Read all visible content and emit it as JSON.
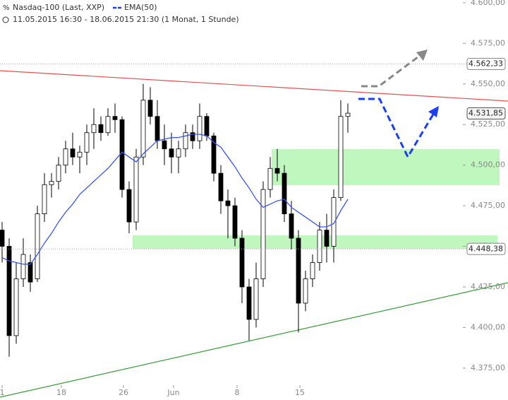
{
  "chart_data": {
    "type": "candlestick",
    "title": "Nasdaq-100 (Last, XXP)",
    "subtitle": "11.05.2015 16:30 - 18.06.2015 21:30 (1 Monat, 1 Stunde)",
    "up_color": "#ffffff",
    "down_color": "#000000",
    "open": [
      4460,
      4450,
      4395,
      4430,
      4440,
      4430,
      4470,
      4488,
      4490,
      4500,
      4510,
      4505,
      4508,
      4520,
      4525,
      4520,
      4530,
      4528,
      4485,
      4465,
      4505,
      4540,
      4530,
      4515,
      4510,
      4505,
      4510,
      4520,
      4515,
      4530,
      4518,
      4495,
      4478,
      4475,
      4455,
      4425,
      4405,
      4430,
      4485,
      4498,
      4495,
      4470,
      4455,
      4415,
      4430,
      4440,
      4460,
      4450,
      4480,
      4530
    ],
    "high": [
      4465,
      4455,
      4440,
      4455,
      4445,
      4475,
      4495,
      4495,
      4505,
      4515,
      4520,
      4512,
      4525,
      4535,
      4530,
      4535,
      4538,
      4530,
      4490,
      4510,
      4550,
      4548,
      4540,
      4525,
      4520,
      4515,
      4525,
      4525,
      4538,
      4532,
      4520,
      4500,
      4485,
      4480,
      4460,
      4430,
      4440,
      4490,
      4505,
      4510,
      4500,
      4478,
      4460,
      4435,
      4445,
      4465,
      4470,
      4485,
      4540,
      4538
    ],
    "low": [
      4440,
      4382,
      4390,
      4425,
      4422,
      4428,
      4465,
      4480,
      4485,
      4495,
      4500,
      4495,
      4500,
      4510,
      4515,
      4518,
      4520,
      4480,
      4458,
      4460,
      4500,
      4525,
      4510,
      4500,
      4495,
      4495,
      4505,
      4510,
      4510,
      4515,
      4490,
      4470,
      4455,
      4450,
      4415,
      4392,
      4400,
      4425,
      4480,
      4490,
      4465,
      4448,
      4397,
      4410,
      4425,
      4435,
      4440,
      4440,
      4478,
      4520
    ],
    "close": [
      4450,
      4395,
      4430,
      4445,
      4428,
      4470,
      4488,
      4490,
      4500,
      4510,
      4505,
      4508,
      4520,
      4525,
      4520,
      4530,
      4528,
      4485,
      4465,
      4505,
      4540,
      4530,
      4515,
      4510,
      4505,
      4510,
      4520,
      4515,
      4530,
      4518,
      4495,
      4478,
      4475,
      4455,
      4425,
      4405,
      4430,
      4485,
      4498,
      4495,
      4470,
      4455,
      4415,
      4430,
      4440,
      4460,
      4450,
      4480,
      4530,
      4532
    ],
    "series": [
      {
        "name": "EMA(50)",
        "color": "#3a56e8",
        "values": [
          4443,
          4441,
          4440,
          4439,
          4439,
          4445,
          4452,
          4458,
          4465,
          4471,
          4476,
          4482,
          4486,
          4490,
          4494,
          4498,
          4503,
          4508,
          4505,
          4502,
          4507,
          4511,
          4515,
          4516,
          4517,
          4517,
          4518,
          4519,
          4519,
          4518,
          4514,
          4511,
          4505,
          4499,
          4492,
          4486,
          4479,
          4474,
          4476,
          4478,
          4479,
          4474,
          4471,
          4468,
          4465,
          4462,
          4462,
          4464,
          4472,
          4479
        ]
      }
    ],
    "xlim": [
      -0.3,
      65.2
    ],
    "xticks": [
      {
        "value": 0,
        "label": "1"
      },
      {
        "value": 8.4,
        "label": "18"
      },
      {
        "value": 17.2,
        "label": "26"
      },
      {
        "value": 24.3,
        "label": "Jun"
      },
      {
        "value": 33.3,
        "label": "8"
      },
      {
        "value": 42.2,
        "label": "15"
      }
    ],
    "ylim": [
      4364.5,
      4601.7
    ],
    "yticks": [
      {
        "value": 4375,
        "label": "4.375,00"
      },
      {
        "value": 4400,
        "label": "4.400,00"
      },
      {
        "value": 4425,
        "label": "4.425,00"
      },
      {
        "value": 4450,
        "label": "4.450,00"
      },
      {
        "value": 4475,
        "label": "4.475,00"
      },
      {
        "value": 4500,
        "label": "4.500,00"
      },
      {
        "value": 4525,
        "label": "4.525,00"
      },
      {
        "value": 4550,
        "label": "4.550,00"
      },
      {
        "value": 4575,
        "label": "4.575,00"
      },
      {
        "value": 4600,
        "label": "4.600,00"
      }
    ],
    "price_labels": [
      {
        "value": 4562.33,
        "label": "4.562,33"
      },
      {
        "value": 4531.85,
        "label": "4.531,85"
      },
      {
        "value": 4448.38,
        "label": "4.448,38"
      }
    ]
  }
}
